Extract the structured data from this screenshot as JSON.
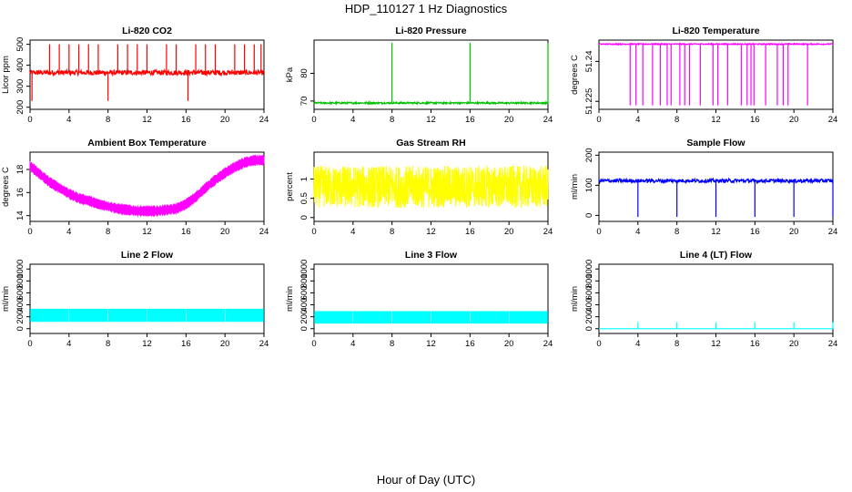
{
  "title": "HDP_110127  1 Hz Diagnostics",
  "xlabel": "Hour of Day (UTC)",
  "chart_data": [
    {
      "type": "line",
      "title": "Li-820 CO2",
      "ylabel": "Licor ppm",
      "color": "#ff0000",
      "xlim": [
        0,
        24
      ],
      "xticks": [
        0,
        4,
        8,
        12,
        16,
        20,
        24
      ],
      "ylim": [
        190,
        520
      ],
      "yticks": [
        200,
        300,
        400,
        500
      ],
      "baseline": 365,
      "noise": 12,
      "spikes_up": [
        2,
        3,
        4,
        5,
        6,
        7,
        9,
        10,
        11,
        12,
        14,
        15,
        17,
        18,
        19,
        21,
        22,
        23,
        23.7
      ],
      "spike_top": 500,
      "spikes_down": [
        0.2,
        8,
        16.2
      ],
      "spike_bottom": 230
    },
    {
      "type": "line",
      "title": "Li-820 Pressure",
      "ylabel": "kPa",
      "color": "#00c000",
      "xlim": [
        0,
        24
      ],
      "xticks": [
        0,
        4,
        8,
        12,
        16,
        20,
        24
      ],
      "ylim": [
        67,
        92
      ],
      "yticks": [
        70,
        80
      ],
      "baseline": 69.3,
      "noise": 0.3,
      "spikes_up": [
        8,
        16,
        24
      ],
      "spike_top": 91,
      "spikes_down": [],
      "spike_bottom": 69
    },
    {
      "type": "line",
      "title": "Li-820 Temperature",
      "ylabel": "degrees C",
      "color": "#ff00ff",
      "xlim": [
        0,
        24
      ],
      "xticks": [
        0,
        4,
        8,
        12,
        16,
        20,
        24
      ],
      "ylim": [
        51.222,
        51.248
      ],
      "yticks": [
        51.225,
        51.24
      ],
      "baseline": 51.2465,
      "noise": 0.0002,
      "spikes_up": [],
      "spike_top": 51.2465,
      "spikes_down": [
        3.2,
        3.8,
        4.5,
        5.5,
        6.3,
        7.0,
        7.4,
        8.3,
        8.8,
        9.3,
        10.4,
        11.7,
        12.2,
        13.2,
        14.6,
        15.2,
        15.6,
        15.9,
        17.1,
        18.3,
        18.9,
        19.4,
        21.4
      ],
      "spike_bottom": 51.2235
    },
    {
      "type": "line",
      "title": "Ambient Box Temperature",
      "ylabel": "degrees C",
      "color": "#ff00ff",
      "xlim": [
        0,
        24
      ],
      "xticks": [
        0,
        4,
        8,
        12,
        16,
        20,
        24
      ],
      "ylim": [
        13.5,
        19.5
      ],
      "yticks": [
        14,
        16,
        18
      ],
      "x": [
        0,
        1,
        2,
        3,
        4,
        5,
        6,
        7,
        8,
        9,
        10,
        11,
        12,
        13,
        14,
        15,
        16,
        17,
        18,
        19,
        20,
        21,
        22,
        23,
        24
      ],
      "y": [
        18.3,
        17.6,
        16.9,
        16.4,
        15.9,
        15.5,
        15.3,
        15.0,
        14.8,
        14.6,
        14.5,
        14.4,
        14.4,
        14.4,
        14.5,
        14.6,
        15.0,
        15.6,
        16.4,
        17.1,
        17.7,
        18.2,
        18.6,
        18.8,
        18.8
      ],
      "band": 0.45
    },
    {
      "type": "line",
      "title": "Gas Stream RH",
      "ylabel": "percent",
      "color": "#ffff00",
      "xlim": [
        0,
        24
      ],
      "xticks": [
        0,
        4,
        8,
        12,
        16,
        20,
        24
      ],
      "ylim": [
        -0.1,
        1.7
      ],
      "yticks": [
        0.0,
        0.5,
        1.0
      ],
      "baseline": 0.8,
      "band": 0.55
    },
    {
      "type": "line",
      "title": "Sample Flow",
      "ylabel": "ml/min",
      "color": "#0000ff",
      "xlim": [
        0,
        24
      ],
      "xticks": [
        0,
        4,
        8,
        12,
        16,
        20,
        24
      ],
      "ylim": [
        -20,
        210
      ],
      "yticks": [
        0,
        100,
        200
      ],
      "baseline": 115,
      "noise": 6,
      "spikes_up": [],
      "spike_top": 130,
      "spikes_down": [
        4,
        8,
        12,
        16,
        20,
        24
      ],
      "spike_bottom": -5
    },
    {
      "type": "line",
      "title": "Line 2 Flow",
      "ylabel": "ml/min",
      "color": "#00ffff",
      "xlim": [
        0,
        24
      ],
      "xticks": [
        0,
        4,
        8,
        12,
        16,
        20,
        24
      ],
      "ylim": [
        -80,
        1080
      ],
      "yticks": [
        0,
        200,
        400,
        600,
        800,
        1000
      ],
      "band_low": 120,
      "band_high": 330,
      "gaps": [
        4,
        8,
        12,
        16,
        20
      ]
    },
    {
      "type": "line",
      "title": "Line 3 Flow",
      "ylabel": "ml/min",
      "color": "#00ffff",
      "xlim": [
        0,
        24
      ],
      "xticks": [
        0,
        4,
        8,
        12,
        16,
        20,
        24
      ],
      "ylim": [
        -80,
        1080
      ],
      "yticks": [
        0,
        200,
        400,
        600,
        800,
        1000
      ],
      "band_low": 90,
      "band_high": 290,
      "gaps": [
        4,
        8,
        12,
        16,
        20
      ]
    },
    {
      "type": "line",
      "title": "Line 4 (LT) Flow",
      "ylabel": "ml/min",
      "color": "#00ffff",
      "xlim": [
        0,
        24
      ],
      "xticks": [
        0,
        4,
        8,
        12,
        16,
        20,
        24
      ],
      "ylim": [
        -80,
        1080
      ],
      "yticks": [
        0,
        200,
        400,
        600,
        800,
        1000
      ],
      "baseline": 0,
      "noise": 0,
      "spikes_up": [
        4,
        8,
        12,
        16,
        20,
        24
      ],
      "spike_top": 110,
      "spikes_down": [],
      "spike_bottom": 0
    }
  ]
}
